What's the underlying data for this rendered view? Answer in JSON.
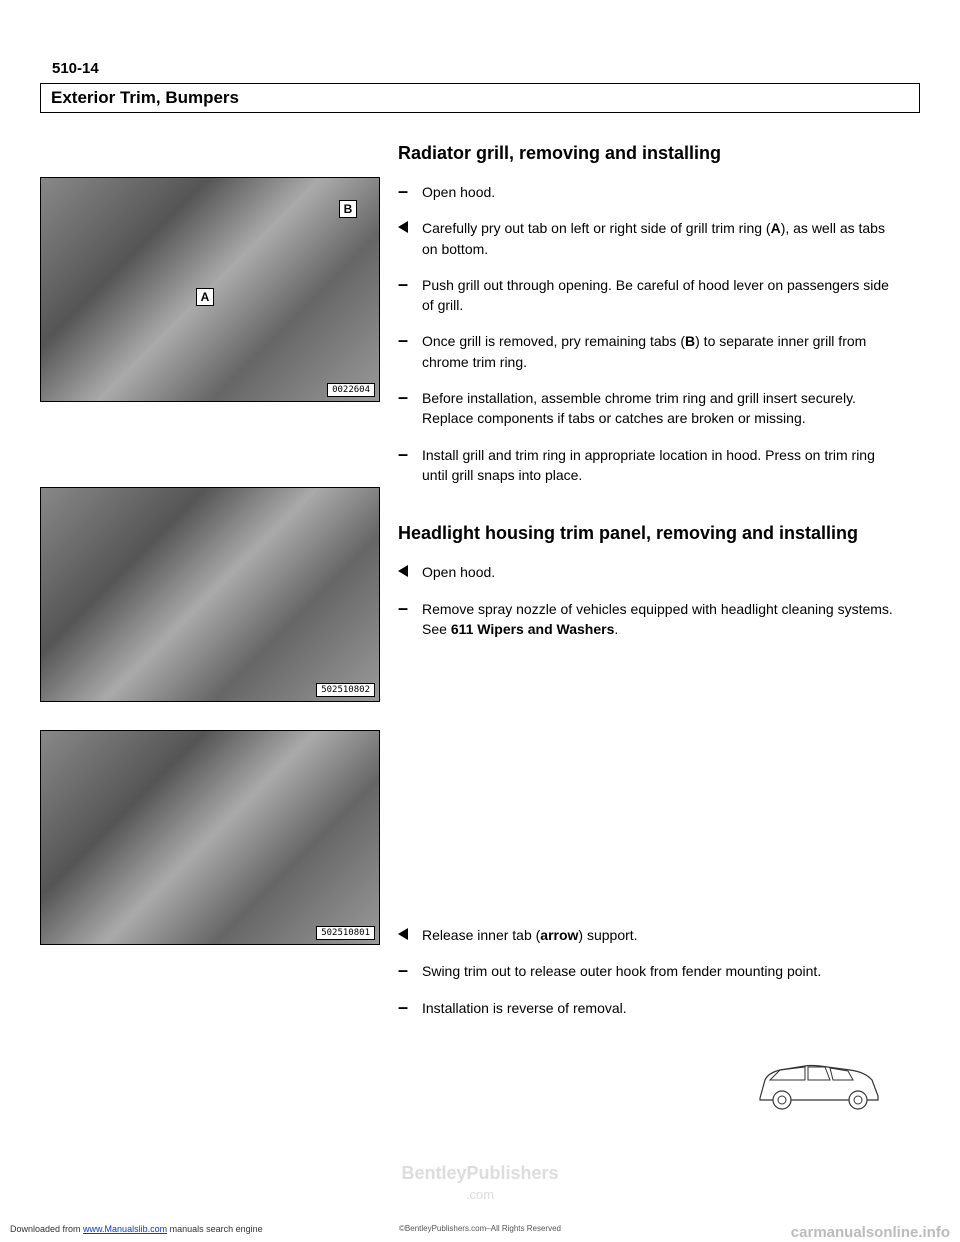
{
  "page_number": "510-14",
  "section_header": "Exterior Trim, Bumpers",
  "photos": {
    "p1": {
      "id": "0022604",
      "labels": {
        "a": "A",
        "b": "B"
      }
    },
    "p2": {
      "id": "502510802"
    },
    "p3": {
      "id": "502510801"
    }
  },
  "sections": {
    "s1": {
      "title": "Radiator grill, removing and installing",
      "steps": [
        {
          "marker": "dash",
          "html": "Open hood."
        },
        {
          "marker": "triangle",
          "html": "Carefully pry out tab on left or right side of grill trim ring (<b>A</b>), as well as tabs on bottom."
        },
        {
          "marker": "dash",
          "html": "Push grill out through opening. Be careful of hood lever on passengers side of grill."
        },
        {
          "marker": "dash",
          "html": "Once grill is removed, pry remaining tabs (<b>B</b>) to separate inner grill from chrome trim ring."
        },
        {
          "marker": "dash",
          "html": "Before installation, assemble chrome trim ring and grill insert securely. Replace components if tabs or catches are broken or missing."
        },
        {
          "marker": "dash",
          "html": "Install grill and trim ring in appropriate location in hood. Press on trim ring until grill snaps into place."
        }
      ]
    },
    "s2": {
      "title": "Headlight housing trim panel, removing and installing",
      "steps": [
        {
          "marker": "triangle",
          "html": "Open hood."
        },
        {
          "marker": "dash",
          "html": "Remove spray nozzle of vehicles equipped with headlight cleaning systems. See <b>611 Wipers and Washers</b>."
        }
      ]
    },
    "s3": {
      "steps": [
        {
          "marker": "triangle",
          "html": "Release inner tab (<b>arrow</b>) support."
        },
        {
          "marker": "dash",
          "html": "Swing trim out to release outer hook from fender mounting point."
        },
        {
          "marker": "dash",
          "html": "Installation is reverse of removal."
        }
      ]
    }
  },
  "watermark": {
    "main": "BentleyPublishers",
    "sub": ".com"
  },
  "footer": {
    "left_pre": "Downloaded from ",
    "left_link": "www.Manualslib.com",
    "left_post": " manuals search engine",
    "center": "©BentleyPublishers.com–All Rights Reserved",
    "right": "carmanualsonline.info"
  }
}
